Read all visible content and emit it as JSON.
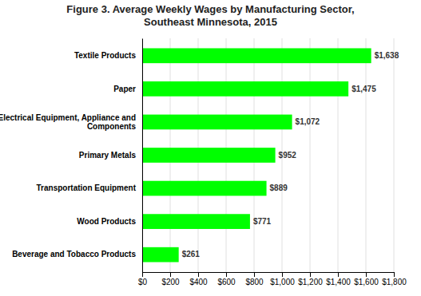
{
  "chart_data": {
    "type": "bar",
    "orientation": "horizontal",
    "title": "Figure 3. Average Weekly Wages by Manufacturing Sector,\nSoutheast Minnesota, 2015",
    "categories": [
      "Beverage and Tobacco Products",
      "Wood Products",
      "Transportation Equipment",
      "Primary Metals",
      "Electrical Equipment, Appliance and\nComponents",
      "Paper",
      "Textile Products"
    ],
    "values": [
      261,
      771,
      889,
      952,
      1072,
      1475,
      1638
    ],
    "value_labels": [
      "$261",
      "$771",
      "$889",
      "$952",
      "$1,072",
      "$1,475",
      "$1,638"
    ],
    "data_labels": true,
    "color": "#00FF00",
    "xlim": [
      0,
      1800
    ],
    "xticks": [
      {
        "value": 0,
        "label": "$0"
      },
      {
        "value": 200,
        "label": "$200"
      },
      {
        "value": 400,
        "label": "$400"
      },
      {
        "value": 600,
        "label": "$600"
      },
      {
        "value": 800,
        "label": "$800"
      },
      {
        "value": 1000,
        "label": "$1,000"
      },
      {
        "value": 1200,
        "label": "$1,200"
      },
      {
        "value": 1400,
        "label": "$1,400"
      },
      {
        "value": 1600,
        "label": "$1,600"
      },
      {
        "value": 1800,
        "label": "$1,800"
      }
    ],
    "grid": true
  }
}
